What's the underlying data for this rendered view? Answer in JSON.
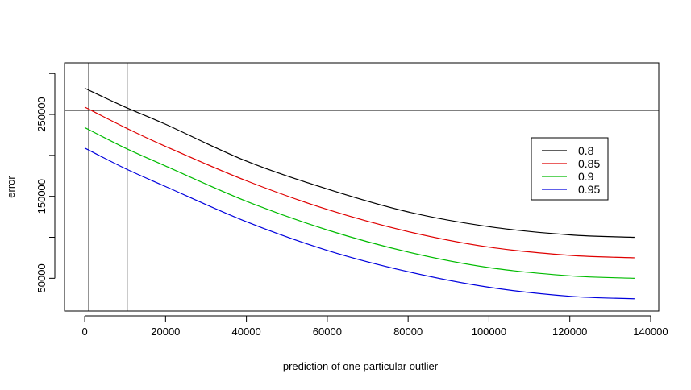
{
  "chart_data": {
    "type": "line",
    "title": "",
    "xlabel": "prediction of one particular outlier",
    "ylabel": "error",
    "xlim": [
      -5000,
      142000
    ],
    "ylim": [
      10000,
      313000
    ],
    "x_ticks": [
      0,
      20000,
      40000,
      60000,
      80000,
      100000,
      120000,
      140000
    ],
    "x_tick_labels": [
      "0",
      "20000",
      "40000",
      "60000",
      "80000",
      "100000",
      "120000",
      "140000"
    ],
    "y_ticks": [
      50000,
      100000,
      150000,
      200000,
      250000,
      300000
    ],
    "y_tick_labels": [
      "50000",
      "",
      "150000",
      "",
      "250000",
      ""
    ],
    "grid": false,
    "legend_position": "right",
    "series": [
      {
        "name": "0.8",
        "color": "#000000",
        "x": [
          0,
          10000,
          20000,
          40000,
          60000,
          80000,
          100000,
          120000,
          136000
        ],
        "y": [
          282000,
          259000,
          238000,
          193000,
          159000,
          131000,
          113000,
          103000,
          100000
        ]
      },
      {
        "name": "0.85",
        "color": "#df0000",
        "x": [
          0,
          10000,
          20000,
          40000,
          60000,
          80000,
          100000,
          120000,
          136000
        ],
        "y": [
          259000,
          234000,
          211000,
          169000,
          134000,
          107000,
          88000,
          78000,
          75000
        ]
      },
      {
        "name": "0.9",
        "color": "#00bb00",
        "x": [
          0,
          10000,
          20000,
          40000,
          60000,
          80000,
          100000,
          120000,
          136000
        ],
        "y": [
          234000,
          209000,
          187000,
          144000,
          109000,
          82000,
          63000,
          53000,
          50000
        ]
      },
      {
        "name": "0.95",
        "color": "#0000dd",
        "x": [
          0,
          10000,
          20000,
          40000,
          60000,
          80000,
          100000,
          120000,
          136000
        ],
        "y": [
          209000,
          184000,
          162000,
          119000,
          84000,
          58000,
          39000,
          28000,
          25000
        ]
      }
    ],
    "reference_lines": {
      "vertical_x": [
        1000,
        10500
      ],
      "horizontal_y": [
        255000
      ]
    }
  }
}
